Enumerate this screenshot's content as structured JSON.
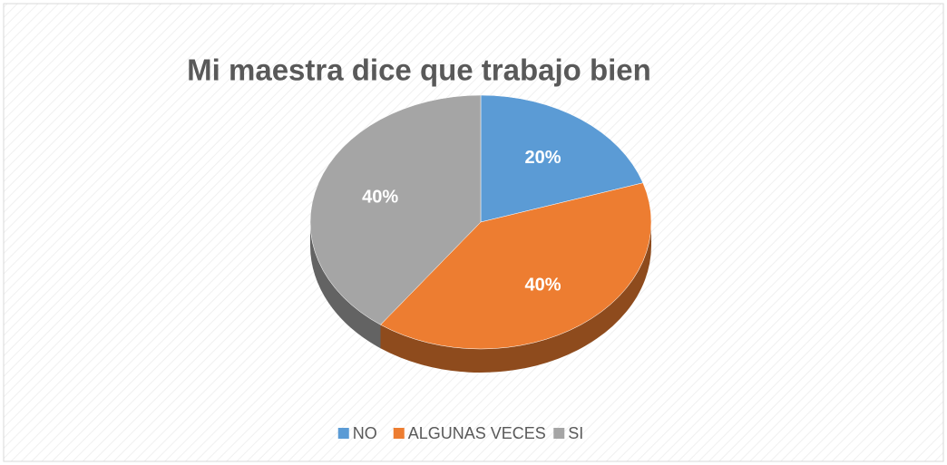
{
  "chart_data": {
    "type": "pie",
    "title": "Mi maestra dice que trabajo bien",
    "categories": [
      "NO",
      "ALGUNAS VECES",
      "SI"
    ],
    "values": [
      20,
      40,
      40
    ],
    "value_labels": [
      "20%",
      "40%",
      "40%"
    ],
    "colors": [
      "#5b9bd5",
      "#ed7d31",
      "#a5a5a5"
    ],
    "legend": "bottom"
  }
}
